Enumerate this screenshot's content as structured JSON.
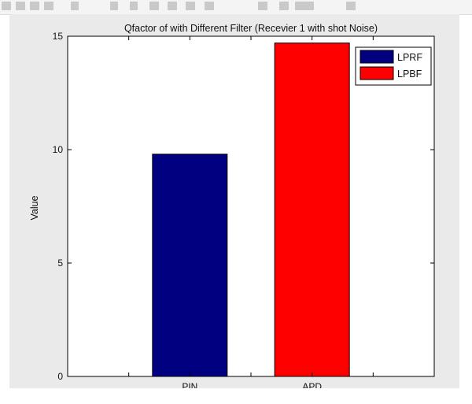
{
  "chart_data": {
    "type": "bar",
    "title": "Qfactor of with Different Filter (Recevier 1 with shot Noise)",
    "xlabel": "",
    "ylabel": "Value",
    "categories": [
      "PIN",
      "APD"
    ],
    "series": [
      {
        "name": "LPRF",
        "values": [
          9.8,
          null
        ],
        "color": "#000080"
      },
      {
        "name": "LPBF",
        "values": [
          null,
          14.7
        ],
        "color": "#ff0000"
      }
    ],
    "ylim": [
      0,
      15
    ],
    "yticks": [
      0,
      5,
      10,
      15
    ],
    "grid": false,
    "legend_position": "top-right"
  }
}
